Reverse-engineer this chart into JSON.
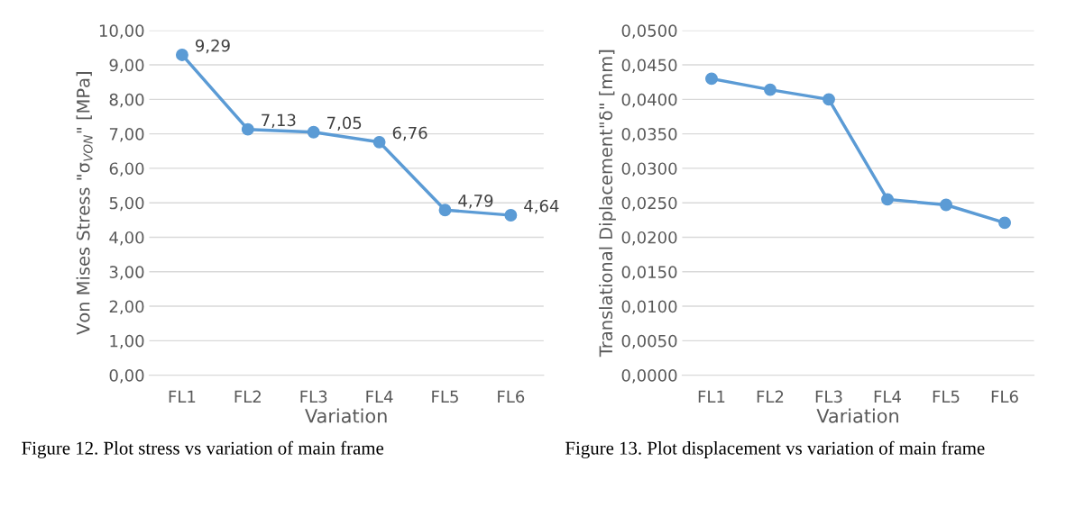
{
  "chart_data": [
    {
      "type": "line",
      "xlabel": "Variation",
      "ylabel": "Von Mises Stress \"σ$_{VON}$\" [MPa]",
      "categories": [
        "FL1",
        "FL2",
        "FL3",
        "FL4",
        "FL5",
        "FL6"
      ],
      "series": [
        {
          "color": "#5b9bd5",
          "values": [
            9.29,
            7.13,
            7.05,
            6.76,
            4.79,
            4.64
          ],
          "value_labels": [
            "9,29",
            "7,13",
            "7,05",
            "6,76",
            "4,79",
            "4,64"
          ]
        }
      ],
      "ylim": [
        0,
        10
      ],
      "yticks": [
        {
          "value": 0,
          "label": "0,00"
        },
        {
          "value": 1,
          "label": "1,00"
        },
        {
          "value": 2,
          "label": "2,00"
        },
        {
          "value": 3,
          "label": "3,00"
        },
        {
          "value": 4,
          "label": "4,00"
        },
        {
          "value": 5,
          "label": "5,00"
        },
        {
          "value": 6,
          "label": "6,00"
        },
        {
          "value": 7,
          "label": "7,00"
        },
        {
          "value": 8,
          "label": "8,00"
        },
        {
          "value": 9,
          "label": "9,00"
        },
        {
          "value": 10,
          "label": "10,00"
        }
      ],
      "grid": "y",
      "marker": "circle",
      "line_style": "solid",
      "annotations": [
        "Figure 12. Plot stress vs variation of main frame"
      ]
    },
    {
      "type": "line",
      "xlabel": "Variation",
      "ylabel": "Translational Diplacement\"δ\" [mm]",
      "categories": [
        "FL1",
        "FL2",
        "FL3",
        "FL4",
        "FL5",
        "FL6"
      ],
      "series": [
        {
          "color": "#5b9bd5",
          "values": [
            0.043,
            0.0414,
            0.04,
            0.0255,
            0.0247,
            0.0221
          ]
        }
      ],
      "ylim": [
        0,
        0.05
      ],
      "yticks": [
        {
          "value": 0,
          "label": "0,0000"
        },
        {
          "value": 0.005,
          "label": "0,0050"
        },
        {
          "value": 0.01,
          "label": "0,0100"
        },
        {
          "value": 0.015,
          "label": "0,0150"
        },
        {
          "value": 0.02,
          "label": "0,0200"
        },
        {
          "value": 0.025,
          "label": "0,0250"
        },
        {
          "value": 0.03,
          "label": "0,0300"
        },
        {
          "value": 0.035,
          "label": "0,0350"
        },
        {
          "value": 0.04,
          "label": "0,0400"
        },
        {
          "value": 0.045,
          "label": "0,0450"
        },
        {
          "value": 0.05,
          "label": "0,0500"
        }
      ],
      "grid": "y",
      "marker": "circle",
      "line_style": "solid",
      "annotations": [
        "Figure 13. Plot displacement vs variation of main frame"
      ]
    }
  ]
}
